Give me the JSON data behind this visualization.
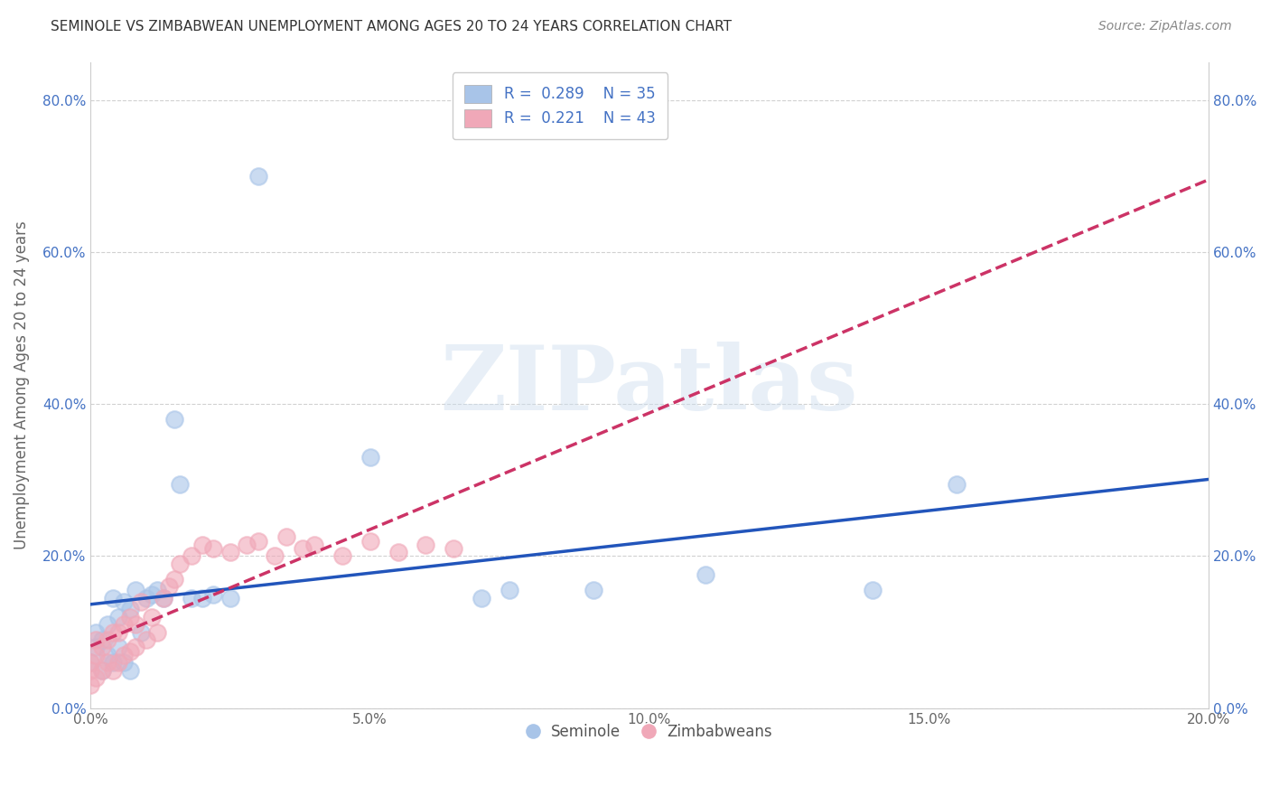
{
  "title": "SEMINOLE VS ZIMBABWEAN UNEMPLOYMENT AMONG AGES 20 TO 24 YEARS CORRELATION CHART",
  "source": "Source: ZipAtlas.com",
  "ylabel": "Unemployment Among Ages 20 to 24 years",
  "xlim": [
    0.0,
    0.2
  ],
  "ylim": [
    0.0,
    0.85
  ],
  "xticks": [
    0.0,
    0.05,
    0.1,
    0.15,
    0.2
  ],
  "yticks": [
    0.0,
    0.2,
    0.4,
    0.6,
    0.8
  ],
  "xtick_labels": [
    "0.0%",
    "5.0%",
    "10.0%",
    "15.0%",
    "20.0%"
  ],
  "ytick_labels": [
    "0.0%",
    "20.0%",
    "40.0%",
    "60.0%",
    "80.0%"
  ],
  "seminole_color": "#a8c4e8",
  "zimbabwe_color": "#f0a8b8",
  "seminole_line_color": "#2255bb",
  "zimbabwe_line_color": "#cc3366",
  "legend_r1": "0.289",
  "legend_n1": "35",
  "legend_r2": "0.221",
  "legend_n2": "43",
  "seminole_x": [
    0.0,
    0.001,
    0.001,
    0.002,
    0.002,
    0.003,
    0.003,
    0.004,
    0.004,
    0.005,
    0.005,
    0.006,
    0.006,
    0.007,
    0.007,
    0.008,
    0.009,
    0.01,
    0.011,
    0.012,
    0.013,
    0.015,
    0.016,
    0.018,
    0.02,
    0.022,
    0.025,
    0.03,
    0.05,
    0.07,
    0.075,
    0.09,
    0.11,
    0.14,
    0.155
  ],
  "seminole_y": [
    0.06,
    0.08,
    0.1,
    0.05,
    0.09,
    0.07,
    0.11,
    0.06,
    0.145,
    0.08,
    0.12,
    0.06,
    0.14,
    0.05,
    0.13,
    0.155,
    0.1,
    0.145,
    0.15,
    0.155,
    0.145,
    0.38,
    0.295,
    0.145,
    0.145,
    0.15,
    0.145,
    0.7,
    0.33,
    0.145,
    0.155,
    0.155,
    0.175,
    0.155,
    0.295
  ],
  "zimbabwe_x": [
    0.0,
    0.0,
    0.0,
    0.001,
    0.001,
    0.001,
    0.002,
    0.002,
    0.003,
    0.003,
    0.004,
    0.004,
    0.005,
    0.005,
    0.006,
    0.006,
    0.007,
    0.007,
    0.008,
    0.008,
    0.009,
    0.01,
    0.011,
    0.012,
    0.013,
    0.014,
    0.015,
    0.016,
    0.018,
    0.02,
    0.022,
    0.025,
    0.028,
    0.03,
    0.033,
    0.035,
    0.038,
    0.04,
    0.045,
    0.05,
    0.055,
    0.06,
    0.065
  ],
  "zimbabwe_y": [
    0.03,
    0.05,
    0.06,
    0.04,
    0.07,
    0.09,
    0.05,
    0.08,
    0.06,
    0.09,
    0.05,
    0.1,
    0.06,
    0.1,
    0.07,
    0.11,
    0.075,
    0.12,
    0.08,
    0.11,
    0.14,
    0.09,
    0.12,
    0.1,
    0.145,
    0.16,
    0.17,
    0.19,
    0.2,
    0.215,
    0.21,
    0.205,
    0.215,
    0.22,
    0.2,
    0.225,
    0.21,
    0.215,
    0.2,
    0.22,
    0.205,
    0.215,
    0.21
  ],
  "background_color": "#ffffff",
  "grid_color": "#cccccc",
  "watermark": "ZIPatlas"
}
